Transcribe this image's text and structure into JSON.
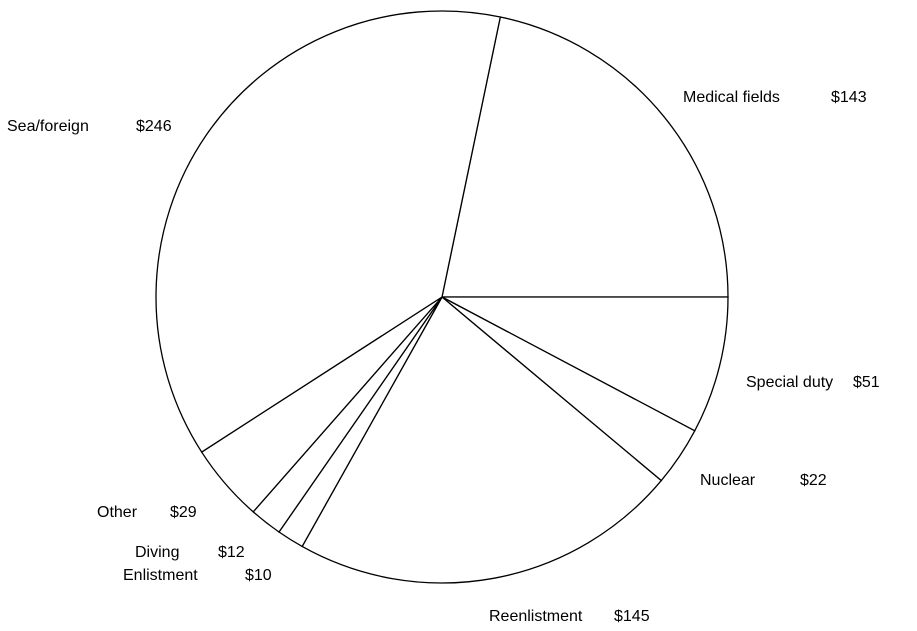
{
  "chart_data": {
    "type": "pie",
    "categories": [
      "Medical fields",
      "Special duty",
      "Nuclear",
      "Reenlistment",
      "Enlistment",
      "Diving",
      "Other",
      "Sea/foreign"
    ],
    "values": [
      143,
      51,
      22,
      145,
      10,
      12,
      29,
      246
    ],
    "value_labels": [
      "$143",
      "$51",
      "$22",
      "$145",
      "$10",
      "$12",
      "$29",
      "$246"
    ],
    "color": "#ffffff"
  }
}
